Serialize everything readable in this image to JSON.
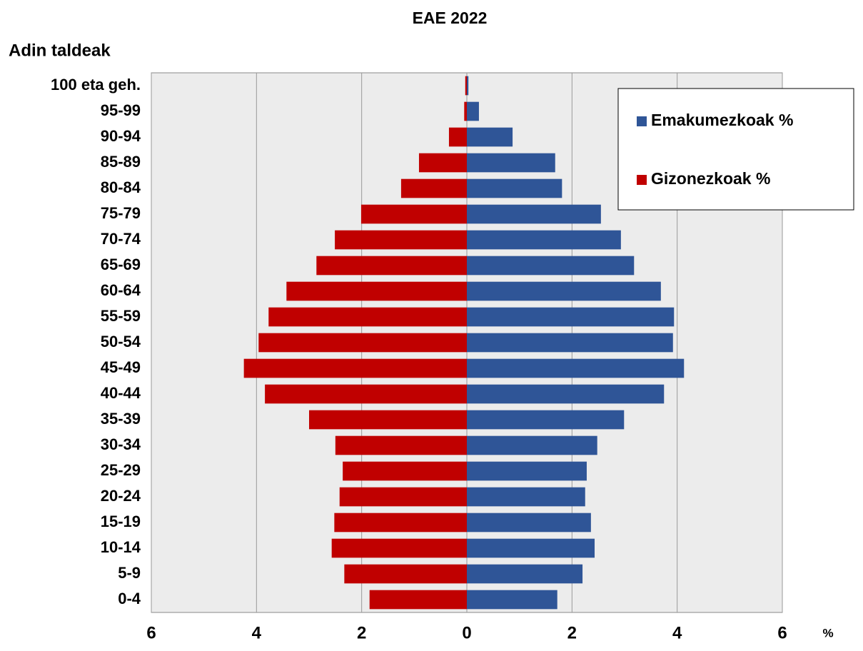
{
  "chart_data": {
    "type": "population-pyramid",
    "title": "EAE 2022",
    "y_label": "Adin taldeak",
    "x_label": "%",
    "categories": [
      "0-4",
      "5-9",
      "10-14",
      "15-19",
      "20-24",
      "25-29",
      "30-34",
      "35-39",
      "40-44",
      "45-49",
      "50-54",
      "55-59",
      "60-64",
      "65-69",
      "70-74",
      "75-79",
      "80-84",
      "85-89",
      "90-94",
      "95-99",
      "100 eta geh."
    ],
    "series": [
      {
        "name": "Emakumezkoak %",
        "color": "#2f5597",
        "values": [
          1.72,
          2.2,
          2.43,
          2.36,
          2.25,
          2.28,
          2.48,
          2.99,
          3.75,
          4.13,
          3.92,
          3.94,
          3.69,
          3.18,
          2.93,
          2.55,
          1.81,
          1.68,
          0.87,
          0.23,
          0.03
        ]
      },
      {
        "name": "Gizonezkoak %",
        "color": "#c00000",
        "values": [
          -1.85,
          -2.33,
          -2.57,
          -2.52,
          -2.42,
          -2.36,
          -2.5,
          -3.0,
          -3.84,
          -4.24,
          -3.96,
          -3.77,
          -3.43,
          -2.86,
          -2.51,
          -2.01,
          -1.25,
          -0.91,
          -0.34,
          -0.05,
          -0.03
        ]
      }
    ],
    "xlim": [
      -6,
      6
    ],
    "xticks": [
      {
        "value": -6,
        "label": "6"
      },
      {
        "value": -4,
        "label": "4"
      },
      {
        "value": -2,
        "label": "2"
      },
      0,
      2,
      4,
      6
    ],
    "grid": true,
    "legend": "upper right"
  }
}
